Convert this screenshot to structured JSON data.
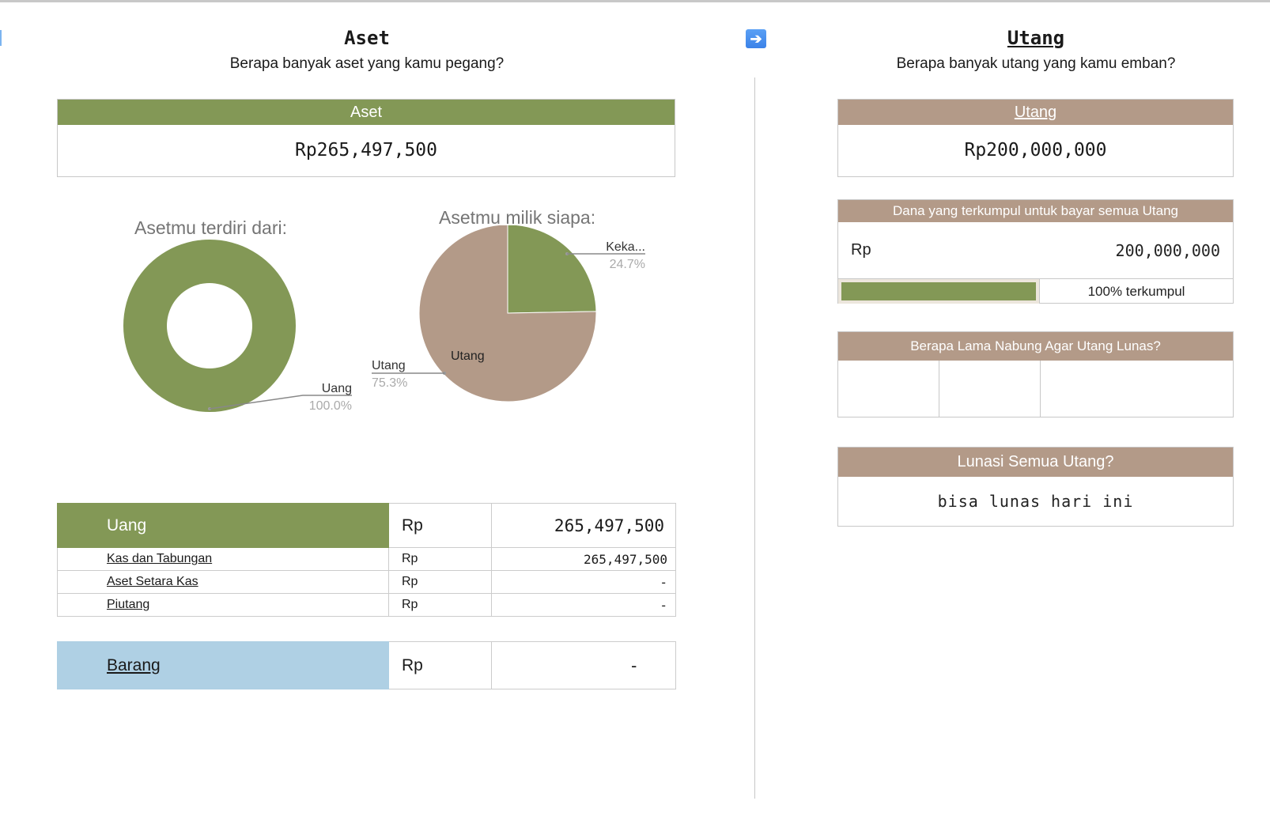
{
  "left": {
    "title": "Aset",
    "subtitle": "Berapa banyak aset yang kamu pegang?",
    "total_box": {
      "header": "Aset",
      "value": "Rp265,497,500"
    },
    "table": {
      "main": {
        "label": "Uang",
        "currency": "Rp",
        "value": "265,497,500"
      },
      "rows": [
        {
          "label": "Kas dan Tabungan",
          "currency": "Rp",
          "value": "265,497,500"
        },
        {
          "label": "Aset Setara Kas",
          "currency": "Rp",
          "value": "-"
        },
        {
          "label": "Piutang",
          "currency": "Rp",
          "value": "-"
        }
      ],
      "barang": {
        "label": "Barang",
        "currency": "Rp",
        "value": "-"
      }
    }
  },
  "right": {
    "title": "Utang",
    "subtitle": "Berapa banyak utang yang kamu emban?",
    "nav_icon": "arrow-right-icon",
    "total_box": {
      "header": "Utang",
      "value": "Rp200,000,000"
    },
    "dana": {
      "header": "Dana yang terkumpul untuk bayar semua Utang",
      "currency": "Rp",
      "value": "200,000,000",
      "progress_percent": 100,
      "progress_label": "100% terkumpul"
    },
    "nabung": {
      "header": "Berapa Lama Nabung Agar Utang Lunas?",
      "cells": [
        "",
        "",
        ""
      ]
    },
    "lunasi": {
      "header": "Lunasi Semua Utang?",
      "value": "bisa lunas hari ini"
    }
  },
  "colors": {
    "green": "#839856",
    "tan": "#b39a88",
    "blue": "#afd0e4"
  },
  "chart_data": [
    {
      "type": "pie",
      "variant": "donut",
      "title": "Asetmu terdiri dari:",
      "slices": [
        {
          "label": "Uang",
          "value": 100.0,
          "display": "100.0%",
          "color": "#839856"
        }
      ]
    },
    {
      "type": "pie",
      "title": "Asetmu milik siapa:",
      "slices": [
        {
          "label": "Keka...",
          "value": 24.7,
          "display": "24.7%",
          "color": "#839856"
        },
        {
          "label": "Utang",
          "value": 75.3,
          "display": "75.3%",
          "color": "#b39a88",
          "inner_label": "Utang"
        }
      ]
    }
  ]
}
